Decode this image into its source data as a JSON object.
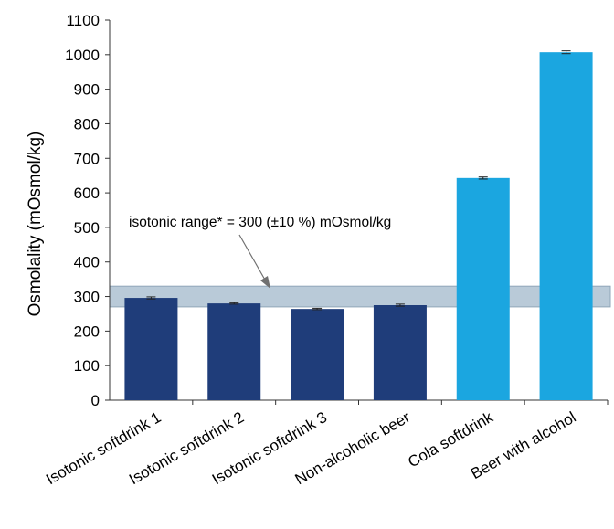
{
  "chart_data": {
    "type": "bar",
    "title": "",
    "xlabel": "",
    "ylabel": "Osmolality (mOsmol/kg)",
    "ylim": [
      0,
      1100
    ],
    "yticks": [
      0,
      100,
      200,
      300,
      400,
      500,
      600,
      700,
      800,
      900,
      1000,
      1100
    ],
    "grid": false,
    "categories": [
      "Isotonic softdrink 1",
      "Isotonic softdrink 2",
      "Isotonic softdrink 3",
      "Non-alcoholic beer",
      "Cola softdrink",
      "Beer with alcohol"
    ],
    "values": [
      296,
      280,
      264,
      275,
      643,
      1007
    ],
    "errors": [
      3,
      2,
      2,
      3,
      3,
      4
    ],
    "bar_colors": [
      "#1f3d7a",
      "#1f3d7a",
      "#1f3d7a",
      "#1f3d7a",
      "#1ba6e0",
      "#1ba6e0"
    ],
    "band": {
      "label": "isotonic range* = 300 (±10 %) mOsmol/kg",
      "range": [
        270,
        330
      ],
      "color": "#b9cad8"
    }
  }
}
